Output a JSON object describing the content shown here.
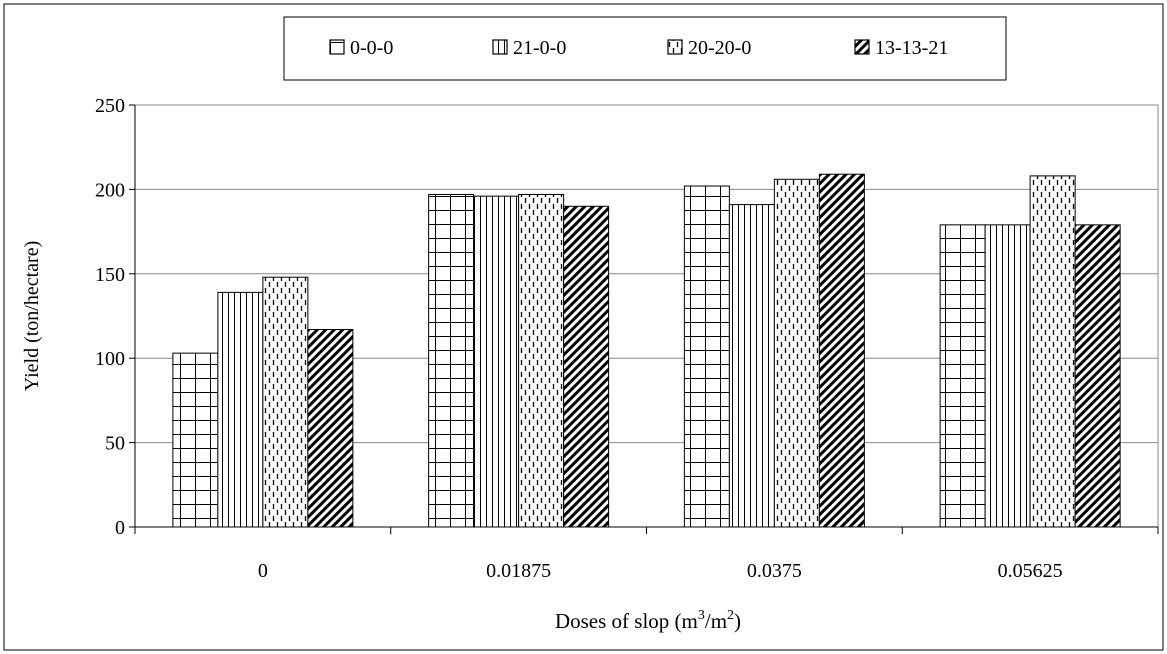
{
  "chart_data": {
    "type": "bar",
    "title": "",
    "xlabel": {
      "main": "Doses of slop (m",
      "sup1": "3",
      "mid": "/m",
      "sup2": "2",
      "end": ")"
    },
    "ylabel": "Yield (ton/hectare)",
    "ylim": [
      0,
      250
    ],
    "yticks": [
      "0",
      "50",
      "100",
      "150",
      "200",
      "250"
    ],
    "categories": [
      "0",
      "0.01875",
      "0.0375",
      "0.05625"
    ],
    "grid": true,
    "legend_position": "top",
    "series": [
      {
        "name": "0-0-0",
        "pattern": "grid",
        "values": [
          103,
          197,
          202,
          179
        ]
      },
      {
        "name": "21-0-0",
        "pattern": "vertical",
        "values": [
          139,
          196,
          191,
          179
        ]
      },
      {
        "name": "20-20-0",
        "pattern": "dashed",
        "values": [
          148,
          197,
          206,
          208
        ]
      },
      {
        "name": "13-13-21",
        "pattern": "diagonal",
        "values": [
          117,
          190,
          209,
          179
        ]
      }
    ]
  }
}
